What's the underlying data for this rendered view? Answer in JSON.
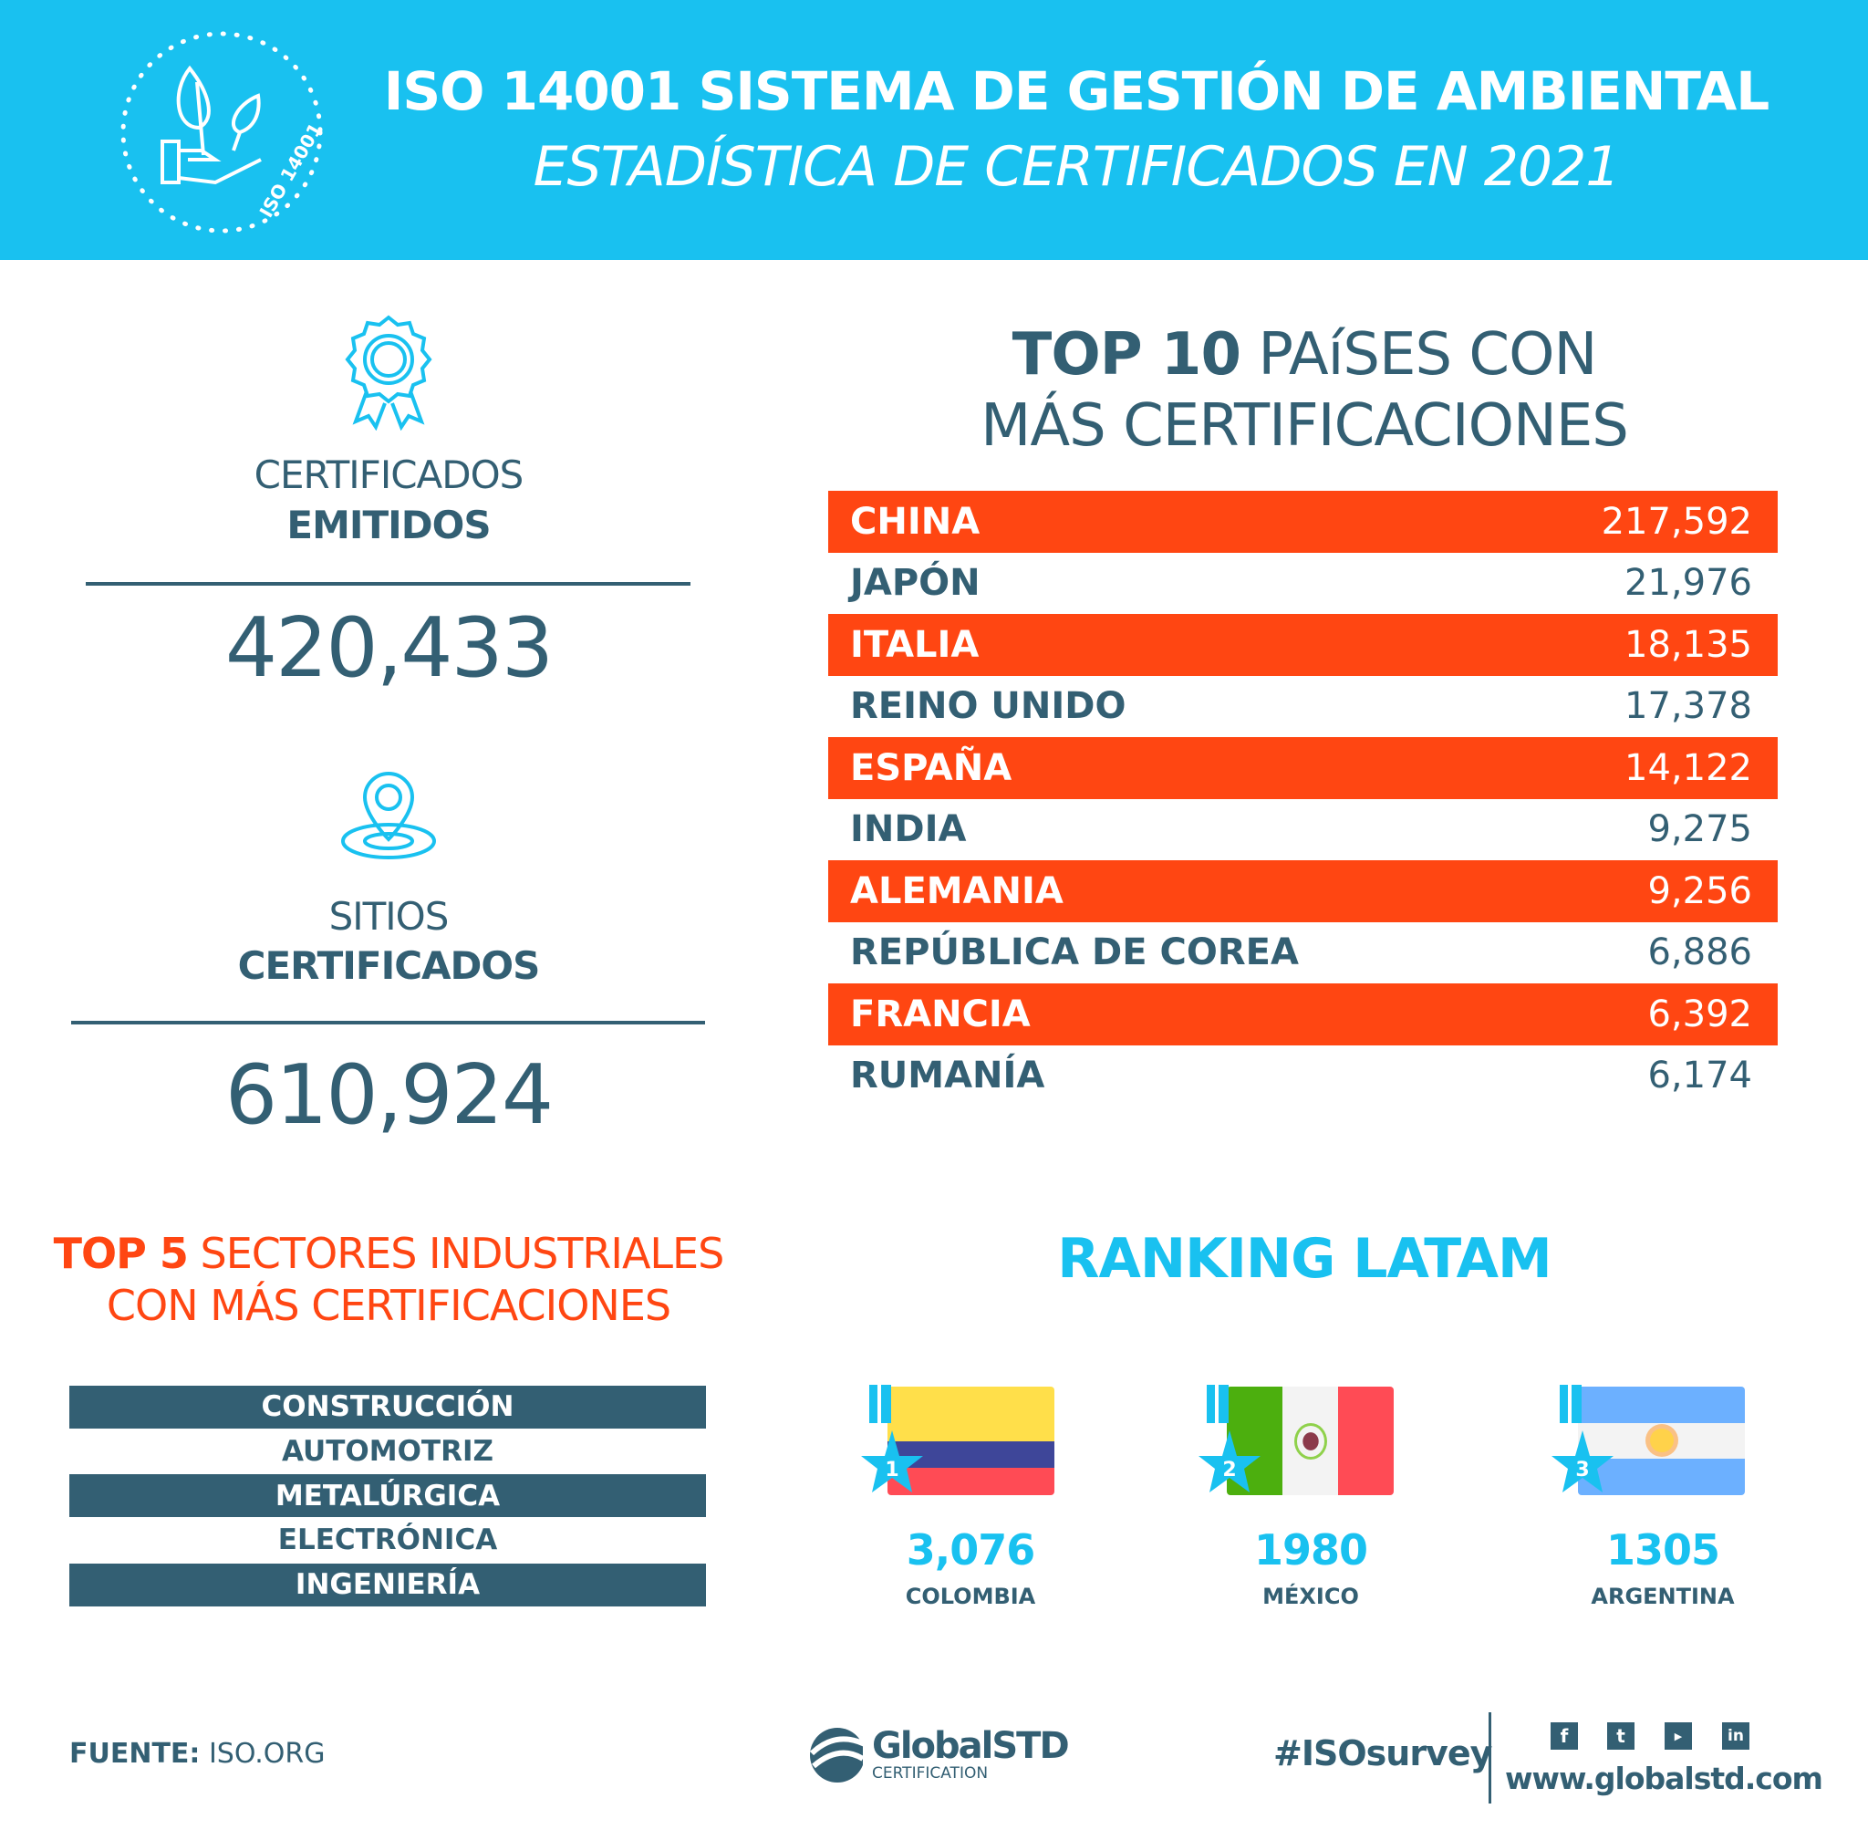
{
  "header": {
    "title": "ISO 14001 SISTEMA DE GESTIÓN DE AMBIENTAL",
    "subtitle": "ESTADÍSTICA DE CERTIFICADOS EN 2021",
    "badge_text": "ISO 14001"
  },
  "stats": {
    "certificates": {
      "label_line1": "CERTIFICADOS",
      "label_line2": "EMITIDOS",
      "value": "420,433"
    },
    "sites": {
      "label_line1": "SITIOS",
      "label_line2": "CERTIFICADOS",
      "value": "610,924"
    }
  },
  "top10": {
    "title_bold": "TOP 10",
    "title_rest1": " PAíSES CON",
    "title_line2": "MÁS CERTIFICACIONES",
    "rows": [
      {
        "country": "CHINA",
        "value": "217,592"
      },
      {
        "country": "JAPÓN",
        "value": "21,976"
      },
      {
        "country": "ITALIA",
        "value": "18,135"
      },
      {
        "country": "REINO UNIDO",
        "value": "17,378"
      },
      {
        "country": "ESPAÑA",
        "value": "14,122"
      },
      {
        "country": "INDIA",
        "value": "9,275"
      },
      {
        "country": "ALEMANIA",
        "value": "9,256"
      },
      {
        "country": "REPÚBLICA DE COREA",
        "value": "6,886"
      },
      {
        "country": "FRANCIA",
        "value": "6,392"
      },
      {
        "country": "RUMANÍA",
        "value": "6,174"
      }
    ]
  },
  "top5": {
    "title_bold": "TOP 5",
    "title_rest1": " SECTORES INDUSTRIALES",
    "title_line2": "CON MÁS CERTIFICACIONES",
    "sectors": [
      "CONSTRUCCIÓN",
      "AUTOMOTRIZ",
      "METALÚRGICA",
      "ELECTRÓNICA",
      "INGENIERÍA"
    ]
  },
  "ranking": {
    "title": "RANKING LATAM",
    "items": [
      {
        "rank": "1",
        "value": "3,076",
        "country": "COLOMBIA"
      },
      {
        "rank": "2",
        "value": "1980",
        "country": "MÉXICO"
      },
      {
        "rank": "3",
        "value": "1305",
        "country": "ARGENTINA"
      }
    ]
  },
  "footer": {
    "source_label": "FUENTE:",
    "source_value": " ISO.ORG",
    "logo_name": "GlobalSTD",
    "logo_sub": "CERTIFICATION",
    "hashtag": "#ISOsurvey",
    "url": "www.globalstd.com",
    "social": [
      "facebook-icon",
      "twitter-icon",
      "youtube-icon",
      "linkedin-icon"
    ]
  },
  "colors": {
    "brand_blue": "#19c1f0",
    "accent_orange": "#ff4612",
    "text_dark": "#335f73"
  }
}
